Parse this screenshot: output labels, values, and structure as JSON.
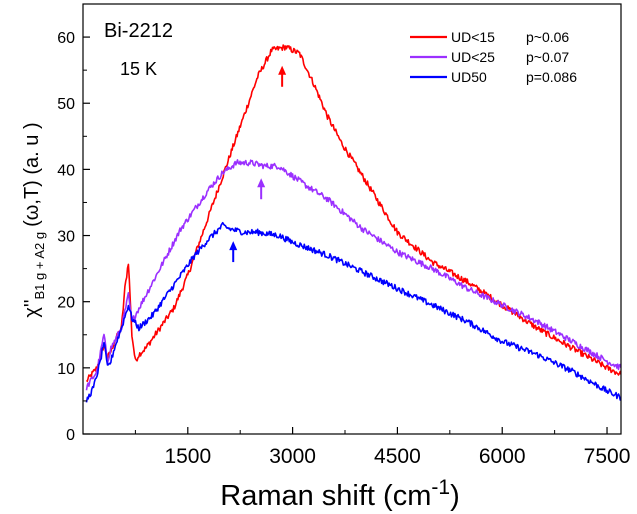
{
  "chart_data": {
    "type": "line",
    "xlabel_main": "Raman shift (cm",
    "xlabel_sup": "-1",
    "xlabel_close": ")",
    "ylabel_chi": "χ''",
    "ylabel_sub": "B1 g + A2 g",
    "ylabel_rest": "(ω,T) (a. u )",
    "xlim": [
      0,
      7700
    ],
    "ylim": [
      0,
      65
    ],
    "x_ticks": [
      1500,
      3000,
      4500,
      6000,
      7500
    ],
    "y_ticks": [
      0,
      10,
      20,
      30,
      40,
      50,
      60
    ],
    "grid": false,
    "legend_position": "top-right",
    "annotations": [
      {
        "id": "material",
        "text": "Bi-2212"
      },
      {
        "id": "temperature",
        "text": "15 K"
      }
    ],
    "series": [
      {
        "name": "UD<15",
        "doping": "p~0.06",
        "color": "#ff0000",
        "peak_marker": {
          "x": 2850,
          "y": 54
        },
        "x": [
          50,
          200,
          300,
          350,
          400,
          450,
          550,
          600,
          650,
          700,
          750,
          800,
          900,
          1100,
          1300,
          1500,
          1700,
          1900,
          2100,
          2300,
          2500,
          2700,
          2900,
          3100,
          3300,
          3500,
          3700,
          4000,
          4500,
          5000,
          5500,
          6000,
          6500,
          7000,
          7500,
          7700
        ],
        "values": [
          8,
          10,
          13.5,
          11.5,
          12.5,
          14,
          16,
          22,
          26,
          15,
          11,
          12,
          13,
          16,
          19,
          24,
          30,
          36,
          42,
          48,
          54,
          58,
          58.5,
          57.5,
          53,
          48,
          44,
          39,
          30.5,
          26,
          23,
          19.5,
          16,
          13,
          10,
          9
        ]
      },
      {
        "name": "UD<25",
        "doping": "p~0.07",
        "color": "#9b30ff",
        "peak_marker": {
          "x": 2550,
          "y": 37
        },
        "x": [
          50,
          200,
          300,
          350,
          400,
          450,
          550,
          650,
          700,
          800,
          1000,
          1200,
          1400,
          1600,
          1800,
          2000,
          2200,
          2400,
          2600,
          2800,
          3000,
          3200,
          3500,
          4000,
          4500,
          5000,
          5500,
          6000,
          6500,
          7000,
          7500,
          7700
        ],
        "values": [
          7,
          9.5,
          15,
          11,
          13,
          14,
          16,
          21,
          17,
          19,
          23,
          27,
          31,
          34,
          37,
          39.5,
          41,
          41,
          40.5,
          40.5,
          39,
          37.5,
          35.5,
          31,
          27.5,
          25,
          22,
          19.5,
          17,
          14,
          11,
          10
        ]
      },
      {
        "name": "UD50",
        "doping": "p=0.086",
        "color": "#0000ff",
        "peak_marker": {
          "x": 2150,
          "y": 27.5
        },
        "x": [
          50,
          150,
          250,
          300,
          350,
          400,
          450,
          550,
          650,
          700,
          800,
          1000,
          1200,
          1400,
          1600,
          1800,
          2000,
          2100,
          2300,
          2500,
          2800,
          3000,
          3500,
          4000,
          4500,
          5000,
          5500,
          6000,
          6500,
          7000,
          7500,
          7700
        ],
        "values": [
          5,
          7,
          11,
          14,
          10,
          11,
          13,
          16,
          19.5,
          17.5,
          16,
          18,
          21,
          24,
          27,
          29.5,
          31.5,
          31,
          30.5,
          30.5,
          30,
          29,
          27,
          24.5,
          22,
          19.5,
          17,
          14,
          12,
          9.5,
          6.5,
          5.5
        ]
      }
    ]
  }
}
